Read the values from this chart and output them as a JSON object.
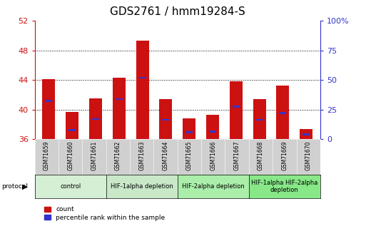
{
  "title": "GDS2761 / hmm19284-S",
  "samples": [
    "GSM71659",
    "GSM71660",
    "GSM71661",
    "GSM71662",
    "GSM71663",
    "GSM71664",
    "GSM71665",
    "GSM71666",
    "GSM71667",
    "GSM71668",
    "GSM71669",
    "GSM71670"
  ],
  "count_values": [
    44.1,
    39.7,
    41.5,
    44.3,
    49.3,
    41.4,
    38.8,
    39.3,
    43.8,
    41.4,
    43.2,
    37.3
  ],
  "percentile_values": [
    41.2,
    37.2,
    38.7,
    41.4,
    44.3,
    38.6,
    36.9,
    37.0,
    40.4,
    38.6,
    39.5,
    36.6
  ],
  "ylim_left": [
    36,
    52
  ],
  "ylim_right": [
    0,
    100
  ],
  "yticks_left": [
    36,
    40,
    44,
    48,
    52
  ],
  "yticks_right": [
    0,
    25,
    50,
    75,
    100
  ],
  "ytick_labels_right": [
    "0",
    "25",
    "50",
    "75",
    "100%"
  ],
  "grid_values": [
    40,
    44,
    48
  ],
  "bar_color": "#cc1111",
  "blue_color": "#3333cc",
  "bar_width": 0.55,
  "groups": [
    {
      "label": "control",
      "indices": [
        0,
        1,
        2
      ],
      "color": "#d4efd4"
    },
    {
      "label": "HIF-1alpha depletion",
      "indices": [
        3,
        4,
        5
      ],
      "color": "#c8e8c8"
    },
    {
      "label": "HIF-2alpha depletion",
      "indices": [
        6,
        7,
        8
      ],
      "color": "#aaeeaa"
    },
    {
      "label": "HIF-1alpha HIF-2alpha\ndepletion",
      "indices": [
        9,
        10,
        11
      ],
      "color": "#88e888"
    }
  ],
  "protocol_label": "protocol",
  "legend_count_label": "count",
  "legend_percentile_label": "percentile rank within the sample",
  "title_fontsize": 11,
  "tick_label_fontsize": 8,
  "tick_color_left": "#cc1111",
  "tick_color_right": "#3333cc",
  "background_xtick": "#d0d0d0"
}
